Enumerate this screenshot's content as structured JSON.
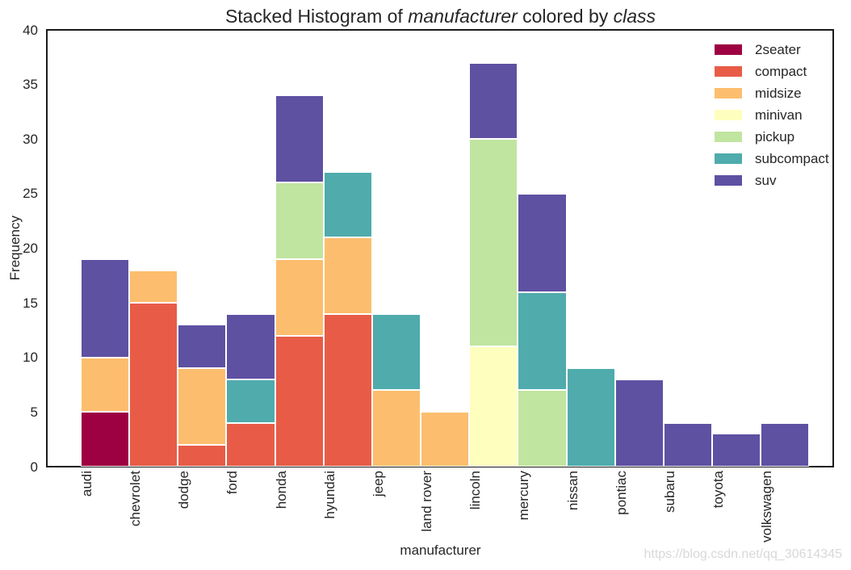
{
  "title": {
    "prefix": "Stacked Histogram of ",
    "emphasis_1": "manufacturer",
    "middle": " colored by ",
    "emphasis_2": "class"
  },
  "axes": {
    "x_label": "manufacturer",
    "y_label": "Frequency"
  },
  "watermark": "https://blog.csdn.net/qq_30614345",
  "colors": {
    "text": "#262626",
    "spine": "#1a1a1a",
    "bar_edge": "#ffffff",
    "watermark": "#d8d8d8",
    "background": "#ffffff"
  },
  "chart_data": {
    "type": "bar",
    "stacked": true,
    "title": "Stacked Histogram of manufacturer colored by class",
    "xlabel": "manufacturer",
    "ylabel": "Frequency",
    "ylim": [
      0,
      40
    ],
    "yticks": [
      0,
      5,
      10,
      15,
      20,
      25,
      30,
      35,
      40
    ],
    "grid": false,
    "legend_position": "upper right",
    "legend_entries": [
      "2seater",
      "compact",
      "midsize",
      "minivan",
      "pickup",
      "subcompact",
      "suv"
    ],
    "categories": [
      "audi",
      "chevrolet",
      "dodge",
      "ford",
      "honda",
      "hyundai",
      "jeep",
      "land rover",
      "lincoln",
      "mercury",
      "nissan",
      "pontiac",
      "subaru",
      "toyota",
      "volkswagen"
    ],
    "series": [
      {
        "name": "2seater",
        "color": "#9e0142",
        "values": [
          5,
          0,
          0,
          0,
          0,
          0,
          0,
          0,
          0,
          0,
          0,
          0,
          0,
          0,
          0
        ]
      },
      {
        "name": "compact",
        "color": "#e85c47",
        "values": [
          0,
          15,
          2,
          4,
          12,
          14,
          0,
          0,
          0,
          0,
          0,
          0,
          0,
          0,
          0
        ]
      },
      {
        "name": "midsize",
        "color": "#fcbe6e",
        "values": [
          5,
          3,
          7,
          0,
          7,
          7,
          7,
          5,
          0,
          0,
          0,
          0,
          0,
          0,
          0
        ]
      },
      {
        "name": "minivan",
        "color": "#feffbe",
        "values": [
          0,
          0,
          0,
          0,
          0,
          0,
          0,
          0,
          11,
          0,
          0,
          0,
          0,
          0,
          0
        ]
      },
      {
        "name": "pickup",
        "color": "#c0e5a0",
        "values": [
          0,
          0,
          0,
          0,
          7,
          0,
          0,
          0,
          19,
          7,
          0,
          0,
          0,
          0,
          0
        ]
      },
      {
        "name": "subcompact",
        "color": "#4fabac",
        "values": [
          0,
          0,
          0,
          4,
          0,
          6,
          7,
          0,
          0,
          9,
          9,
          0,
          0,
          0,
          0
        ]
      },
      {
        "name": "suv",
        "color": "#5e51a2",
        "values": [
          9,
          0,
          4,
          6,
          8,
          0,
          0,
          0,
          7,
          9,
          0,
          8,
          4,
          3,
          4
        ]
      }
    ],
    "totals": [
      19,
      18,
      13,
      14,
      34,
      27,
      14,
      5,
      37,
      25,
      9,
      8,
      4,
      3,
      4
    ]
  }
}
